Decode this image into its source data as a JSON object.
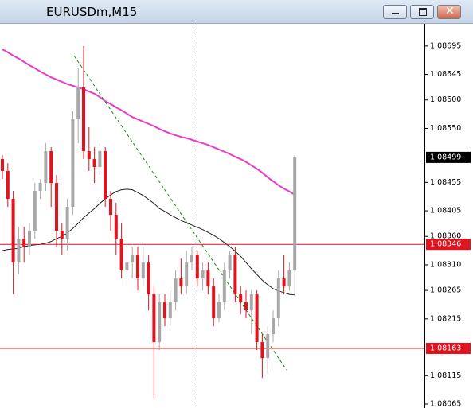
{
  "chart_data": {
    "type": "candlestick",
    "title": "EURUSDm,M15",
    "up_color": "#a8a8a8",
    "down_color": "#e0141e",
    "open": [
      1.08496,
      1.08475,
      1.08426,
      1.08314,
      1.08356,
      1.08342,
      1.0837,
      1.0844,
      1.08454,
      1.0851,
      1.08454,
      1.0837,
      1.08356,
      1.08412,
      1.08566,
      1.08622,
      1.0851,
      1.08496,
      1.08482,
      1.0851,
      1.08426,
      1.08398,
      1.08356,
      1.083,
      1.08314,
      1.08328,
      1.08286,
      1.08314,
      1.08258,
      1.08174,
      1.08244,
      1.08216,
      1.08244,
      1.08286,
      1.08272,
      1.08314,
      1.08328,
      1.08286,
      1.083,
      1.08272,
      1.08216,
      1.08244,
      1.083,
      1.08328,
      1.08258,
      1.08244,
      1.0823,
      1.08258,
      1.08174,
      1.08146,
      1.08188,
      1.08216,
      1.08286,
      1.08272,
      1.083
    ],
    "high": [
      1.08503,
      1.08489,
      1.0844,
      1.08377,
      1.08377,
      1.08384,
      1.08454,
      1.08461,
      1.08524,
      1.08517,
      1.08468,
      1.08384,
      1.08426,
      1.0858,
      1.08657,
      1.08695,
      1.08552,
      1.08517,
      1.08524,
      1.08517,
      1.0844,
      1.08419,
      1.08384,
      1.08356,
      1.08342,
      1.08342,
      1.08342,
      1.08328,
      1.08272,
      1.08258,
      1.08258,
      1.08265,
      1.083,
      1.08321,
      1.08335,
      1.08342,
      1.08335,
      1.08314,
      1.08314,
      1.08286,
      1.08258,
      1.08314,
      1.08335,
      1.08342,
      1.08272,
      1.08265,
      1.08265,
      1.08265,
      1.08188,
      1.08202,
      1.0823,
      1.083,
      1.08328,
      1.08314,
      1.08503
    ],
    "low": [
      1.08461,
      1.08412,
      1.08258,
      1.08293,
      1.08314,
      1.08328,
      1.08356,
      1.08426,
      1.0844,
      1.08412,
      1.08342,
      1.08328,
      1.08335,
      1.08398,
      1.08524,
      1.08496,
      1.08475,
      1.08454,
      1.08468,
      1.08412,
      1.0837,
      1.08328,
      1.08286,
      1.08272,
      1.08286,
      1.08265,
      1.08272,
      1.0823,
      1.08076,
      1.0816,
      1.08202,
      1.08202,
      1.0823,
      1.08258,
      1.08258,
      1.083,
      1.08272,
      1.08265,
      1.08258,
      1.08202,
      1.08209,
      1.0823,
      1.08286,
      1.08244,
      1.08223,
      1.08216,
      1.08188,
      1.0816,
      1.08111,
      1.08118,
      1.08174,
      1.08202,
      1.08258,
      1.08265,
      1.08258
    ],
    "close": [
      1.08475,
      1.08426,
      1.08314,
      1.08356,
      1.08342,
      1.0837,
      1.0844,
      1.08454,
      1.0851,
      1.08454,
      1.0837,
      1.08356,
      1.08412,
      1.08566,
      1.08622,
      1.0851,
      1.08496,
      1.08482,
      1.0851,
      1.08426,
      1.08398,
      1.08356,
      1.083,
      1.08314,
      1.08328,
      1.08286,
      1.08314,
      1.08258,
      1.08174,
      1.08244,
      1.08216,
      1.08244,
      1.08286,
      1.08272,
      1.08314,
      1.08328,
      1.08286,
      1.083,
      1.08272,
      1.08216,
      1.08244,
      1.083,
      1.08328,
      1.08258,
      1.08244,
      1.0823,
      1.08258,
      1.08174,
      1.08146,
      1.08188,
      1.08216,
      1.08286,
      1.08272,
      1.083,
      1.08499
    ],
    "moving_averages": [
      {
        "color": "#e83cc8",
        "values": [
          1.08689,
          1.08684,
          1.08678,
          1.08673,
          1.08667,
          1.08661,
          1.08656,
          1.0865,
          1.08645,
          1.0864,
          1.08636,
          1.08632,
          1.08628,
          1.08625,
          1.08622,
          1.08619,
          1.08615,
          1.08611,
          1.08605,
          1.08598,
          1.08593,
          1.08587,
          1.08582,
          1.08576,
          1.0857,
          1.08566,
          1.08562,
          1.08558,
          1.08554,
          1.08549,
          1.08545,
          1.08541,
          1.08538,
          1.08535,
          1.08533,
          1.0853,
          1.08527,
          1.08524,
          1.08521,
          1.08517,
          1.08513,
          1.08509,
          1.08505,
          1.085,
          1.08496,
          1.08491,
          1.08485,
          1.08479,
          1.08472,
          1.08464,
          1.08457,
          1.0845,
          1.08444,
          1.08439,
          1.08433
        ]
      },
      {
        "color": "#202020",
        "values": [
          1.08335,
          1.08337,
          1.08338,
          1.08339,
          1.08342,
          1.08344,
          1.08345,
          1.08346,
          1.08348,
          1.08351,
          1.08356,
          1.0836,
          1.08366,
          1.08374,
          1.08383,
          1.08393,
          1.08401,
          1.08409,
          1.08418,
          1.08426,
          1.08433,
          1.08439,
          1.08442,
          1.08443,
          1.08442,
          1.08437,
          1.08432,
          1.08425,
          1.08418,
          1.08409,
          1.08404,
          1.08398,
          1.08393,
          1.08388,
          1.08384,
          1.0838,
          1.08376,
          1.08372,
          1.08367,
          1.08362,
          1.08356,
          1.08349,
          1.08342,
          1.08334,
          1.08325,
          1.08314,
          1.08303,
          1.08293,
          1.08283,
          1.08275,
          1.08268,
          1.08264,
          1.08261,
          1.08258,
          1.08257
        ]
      }
    ],
    "trendline": {
      "start": 1.08678,
      "end": 1.08125,
      "color": "#1a8a1a"
    },
    "hlines": [
      {
        "value": 1.08346,
        "color": "#e0141e"
      },
      {
        "value": 1.08163,
        "color": "#e0141e"
      }
    ],
    "ylim": [
      1.08058,
      1.08734
    ],
    "yticks": [
      1.08695,
      1.08645,
      {
        "value": 1.086,
        "label": "1.08600"
      },
      {
        "value": 1.0855,
        "label": "1.08550"
      },
      1.08455,
      1.08405,
      {
        "value": 1.0836,
        "label": "1.08360"
      },
      {
        "value": 1.0831,
        "label": "1.08310"
      },
      1.08265,
      1.08215,
      1.08115,
      1.08065
    ]
  }
}
